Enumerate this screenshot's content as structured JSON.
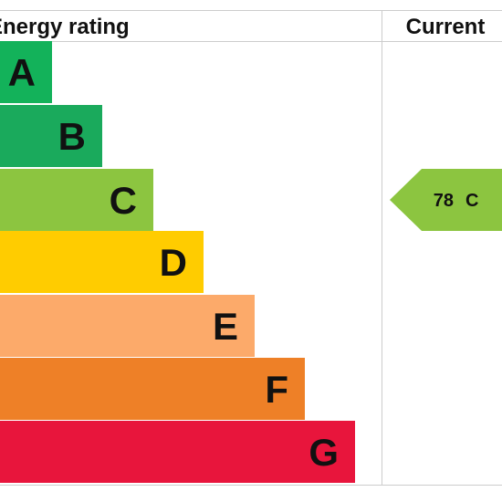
{
  "header": {
    "title": "Energy rating",
    "current": "Current"
  },
  "bands": [
    {
      "letter": "A",
      "color": "#13b25a"
    },
    {
      "letter": "B",
      "color": "#1aaa5c"
    },
    {
      "letter": "C",
      "color": "#8cc540"
    },
    {
      "letter": "D",
      "color": "#ffcc00"
    },
    {
      "letter": "E",
      "color": "#fcaa6a"
    },
    {
      "letter": "F",
      "color": "#ee8027"
    },
    {
      "letter": "G",
      "color": "#e8153c"
    }
  ],
  "current": {
    "value": 78,
    "band": "C",
    "color": "#8cc540"
  }
}
